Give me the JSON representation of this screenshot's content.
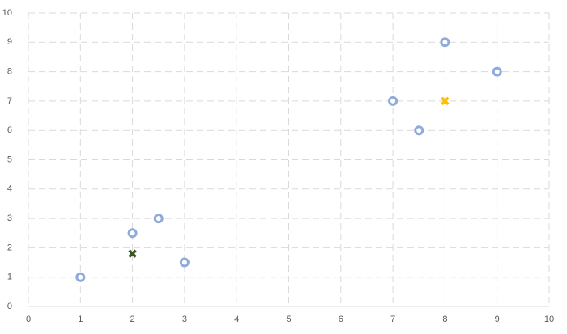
{
  "chart_data": {
    "type": "scatter",
    "series": [
      {
        "color": "#8faadc",
        "marker": "circle",
        "x": [
          1,
          2,
          2.5,
          3,
          7,
          7.5,
          8,
          9
        ],
        "values": [
          1,
          2.5,
          3,
          1.5,
          7,
          6,
          9,
          8
        ]
      },
      {
        "color": "#375623",
        "marker": "cross",
        "x": [
          2
        ],
        "values": [
          1.8
        ]
      },
      {
        "color": "#ffc000",
        "marker": "cross",
        "x": [
          8
        ],
        "values": [
          7
        ]
      }
    ],
    "xlim": [
      0,
      10
    ],
    "xticks": [
      0,
      1,
      2,
      3,
      4,
      5,
      6,
      7,
      8,
      9,
      10
    ],
    "ylim": [
      0,
      10
    ],
    "yticks": [
      0,
      1,
      2,
      3,
      4,
      5,
      6,
      7,
      8,
      9,
      10
    ],
    "grid": true
  }
}
